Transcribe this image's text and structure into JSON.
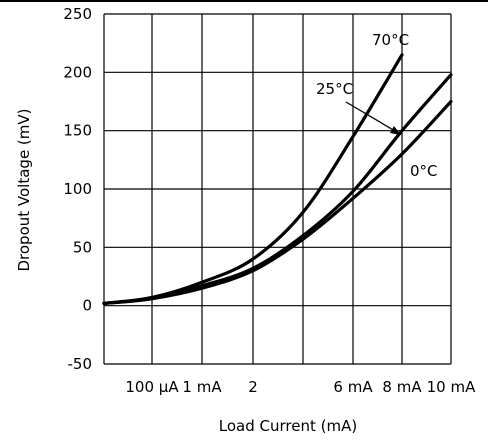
{
  "chart_data": {
    "type": "line",
    "xlabel": "Load Current (mA)",
    "ylabel": "Dropout Voltage (mV)",
    "ylim": [
      -50,
      250
    ],
    "yticks": [
      -50,
      0,
      50,
      100,
      150,
      200,
      250
    ],
    "xticks": [
      {
        "label": "100 μA",
        "value": 0.1
      },
      {
        "label": "1 mA",
        "value": 1
      },
      {
        "label": "2",
        "value": 2
      },
      {
        "label": "6 mA",
        "value": 6
      },
      {
        "label": "8 mA",
        "value": 8
      },
      {
        "label": "10 mA",
        "value": 10
      }
    ],
    "grid": true,
    "series": [
      {
        "name": "70°C",
        "x": [
          -0.4,
          0.1,
          1,
          2,
          4,
          6,
          8
        ],
        "y": [
          2,
          7,
          20,
          40,
          80,
          145,
          215
        ]
      },
      {
        "name": "25°C",
        "x": [
          -0.4,
          0.1,
          1,
          2,
          4,
          6,
          8,
          10
        ],
        "y": [
          2,
          6,
          17,
          32,
          60,
          98,
          150,
          198
        ]
      },
      {
        "name": "0°C",
        "x": [
          -0.4,
          0.1,
          1,
          2,
          4,
          6,
          8,
          10
        ],
        "y": [
          2,
          6,
          15,
          30,
          57,
          92,
          130,
          175
        ]
      }
    ]
  }
}
